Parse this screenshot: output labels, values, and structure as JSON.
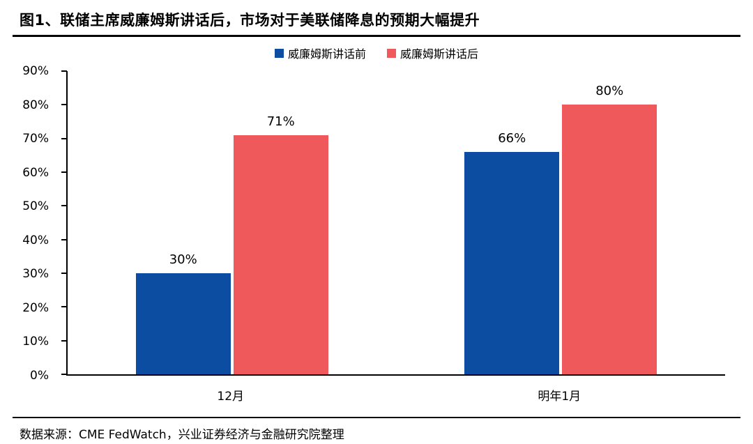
{
  "title": "图1、联储主席威廉姆斯讲话后，市场对于美联储降息的预期大幅提升",
  "source": "数据来源：CME FedWatch，兴业证券经济与金融研究院整理",
  "chart_data": {
    "type": "bar",
    "categories": [
      "12月",
      "明年1月"
    ],
    "series": [
      {
        "name": "威廉姆斯讲话前",
        "values": [
          30,
          66
        ],
        "color": "#0C4DA2"
      },
      {
        "name": "威廉姆斯讲话后",
        "values": [
          71,
          80
        ],
        "color": "#F0595B"
      }
    ],
    "title": "图1、联储主席威廉姆斯讲话后，市场对于美联储降息的预期大幅提升",
    "xlabel": "",
    "ylabel": "",
    "ylim": [
      0,
      90
    ],
    "ytick_step": 10,
    "ytick_suffix": "%",
    "data_label_suffix": "%",
    "legend_position": "top",
    "grid": false,
    "axis_color": "#000000"
  }
}
